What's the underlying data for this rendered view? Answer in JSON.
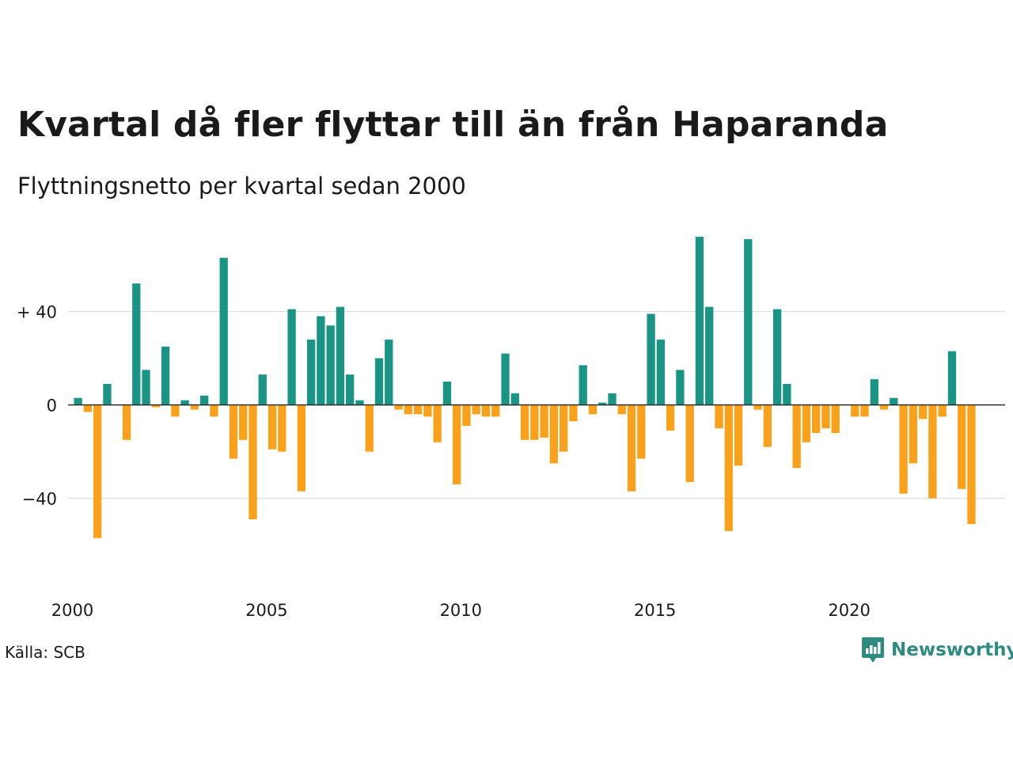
{
  "title": "Kvartal då fler flyttar till än från Haparanda",
  "subtitle": "Flyttningsnetto per kvartal sedan 2000",
  "source": "Källa: SCB",
  "brand": "Newsworthy",
  "colors": {
    "positive": "#1a9485",
    "negative": "#f9a11b",
    "grid": "#dddddd",
    "zero": "#222222",
    "brand": "#2e8b80"
  },
  "chart_data": {
    "type": "bar",
    "x_start": "2000 Q1",
    "values": [
      3,
      -3,
      -57,
      9,
      0,
      -15,
      52,
      15,
      -1,
      25,
      -5,
      2,
      -2,
      4,
      -5,
      63,
      -23,
      -15,
      -49,
      13,
      -19,
      -20,
      41,
      -37,
      28,
      38,
      34,
      42,
      13,
      2,
      -20,
      20,
      28,
      -2,
      -4,
      -4,
      -5,
      -16,
      10,
      -34,
      -9,
      -4,
      -5,
      -5,
      22,
      5,
      -15,
      -15,
      -14,
      -25,
      -20,
      -7,
      17,
      -4,
      1,
      5,
      -4,
      -37,
      -23,
      39,
      28,
      -11,
      15,
      -33,
      72,
      42,
      -10,
      -54,
      -26,
      71,
      -2,
      -18,
      41,
      9,
      -27,
      -16,
      -12,
      -10,
      -12,
      0,
      -5,
      -5,
      11,
      -2,
      3,
      -38,
      -25,
      -6,
      -40,
      -5,
      23,
      -36,
      -51
    ],
    "x_ticks": [
      "2000",
      "2005",
      "2010",
      "2015",
      "2020"
    ],
    "y_ticks": [
      {
        "value": 40,
        "label": "+ 40"
      },
      {
        "value": 0,
        "label": "0"
      },
      {
        "value": -40,
        "label": "−40"
      }
    ],
    "ylim": [
      -80,
      75
    ],
    "grid": true
  }
}
